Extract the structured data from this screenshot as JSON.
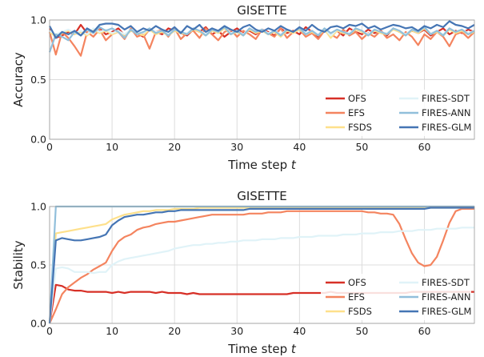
{
  "chart_data": [
    {
      "type": "line",
      "title": "GISETTE",
      "xlabel_main": "Time step ",
      "xlabel_var": "t",
      "ylabel": "Accuracy",
      "xlim": [
        0,
        68
      ],
      "ylim": [
        0,
        1
      ],
      "xticks": [
        "0",
        "10",
        "20",
        "30",
        "40",
        "50",
        "60"
      ],
      "xtick_values": [
        0,
        10,
        20,
        30,
        40,
        50,
        60
      ],
      "yticks": [
        "0.0",
        "0.5",
        "1.0"
      ],
      "ytick_values": [
        0,
        0.5,
        1.0
      ],
      "grid": true,
      "legend_position": "lower-right",
      "series": [
        {
          "name": "OFS",
          "color": "#d73027",
          "values": [
            0.93,
            0.85,
            0.87,
            0.9,
            0.88,
            0.96,
            0.89,
            0.91,
            0.93,
            0.88,
            0.9,
            0.93,
            0.87,
            0.91,
            0.89,
            0.86,
            0.92,
            0.9,
            0.88,
            0.93,
            0.91,
            0.89,
            0.87,
            0.92,
            0.9,
            0.94,
            0.88,
            0.91,
            0.86,
            0.9,
            0.93,
            0.89,
            0.91,
            0.88,
            0.92,
            0.9,
            0.87,
            0.93,
            0.89,
            0.91,
            0.88,
            0.94,
            0.9,
            0.86,
            0.92,
            0.89,
            0.91,
            0.87,
            0.93,
            0.9,
            0.88,
            0.92,
            0.89,
            0.91,
            0.87,
            0.93,
            0.9,
            0.88,
            0.91,
            0.89,
            0.92,
            0.87,
            0.9,
            0.93,
            0.88,
            0.91,
            0.89,
            0.92,
            0.9
          ]
        },
        {
          "name": "EFS",
          "color": "#f4845f",
          "values": [
            0.9,
            0.71,
            0.9,
            0.85,
            0.78,
            0.7,
            0.9,
            0.86,
            0.92,
            0.83,
            0.88,
            0.9,
            0.84,
            0.93,
            0.86,
            0.88,
            0.76,
            0.9,
            0.92,
            0.86,
            0.93,
            0.84,
            0.89,
            0.91,
            0.85,
            0.93,
            0.88,
            0.83,
            0.9,
            0.92,
            0.86,
            0.91,
            0.88,
            0.84,
            0.92,
            0.89,
            0.86,
            0.93,
            0.85,
            0.9,
            0.92,
            0.86,
            0.89,
            0.84,
            0.91,
            0.88,
            0.85,
            0.92,
            0.87,
            0.9,
            0.84,
            0.89,
            0.86,
            0.91,
            0.85,
            0.88,
            0.83,
            0.9,
            0.86,
            0.79,
            0.88,
            0.84,
            0.9,
            0.86,
            0.78,
            0.88,
            0.9,
            0.85,
            0.9
          ]
        },
        {
          "name": "FSDS",
          "color": "#fee08b",
          "values": [
            0.9,
            0.86,
            0.89,
            0.91,
            0.88,
            0.9,
            0.87,
            0.92,
            0.89,
            0.91,
            0.88,
            0.9,
            0.86,
            0.91,
            0.89,
            0.87,
            0.92,
            0.88,
            0.9,
            0.87,
            0.91,
            0.89,
            0.88,
            0.92,
            0.9,
            0.87,
            0.91,
            0.89,
            0.93,
            0.88,
            0.9,
            0.87,
            0.92,
            0.89,
            0.91,
            0.88,
            0.9,
            0.86,
            0.91,
            0.89,
            0.92,
            0.88,
            0.9,
            0.87,
            0.92,
            0.85,
            0.91,
            0.89,
            0.88,
            0.92,
            0.9,
            0.87,
            0.91,
            0.89,
            0.88,
            0.92,
            0.9,
            0.87,
            0.91,
            0.89,
            0.93,
            0.88,
            0.9,
            0.87,
            0.92,
            0.89,
            0.91,
            0.88,
            0.9
          ]
        },
        {
          "name": "FIRES-SDT",
          "color": "#e0f3f8",
          "values": [
            0.91,
            0.88,
            0.9,
            0.92,
            0.89,
            0.91,
            0.88,
            0.93,
            0.9,
            0.92,
            0.89,
            0.91,
            0.88,
            0.92,
            0.9,
            0.89,
            0.93,
            0.9,
            0.91,
            0.88,
            0.92,
            0.9,
            0.89,
            0.93,
            0.91,
            0.88,
            0.92,
            0.9,
            0.94,
            0.89,
            0.91,
            0.88,
            0.93,
            0.9,
            0.92,
            0.89,
            0.91,
            0.88,
            0.92,
            0.9,
            0.93,
            0.89,
            0.91,
            0.88,
            0.93,
            0.87,
            0.92,
            0.9,
            0.89,
            0.93,
            0.91,
            0.88,
            0.92,
            0.9,
            0.89,
            0.93,
            0.91,
            0.88,
            0.92,
            0.9,
            0.94,
            0.89,
            0.91,
            0.88,
            0.93,
            0.9,
            0.92,
            0.89,
            0.91
          ]
        },
        {
          "name": "FIRES-ANN",
          "color": "#91bfdb",
          "values": [
            0.73,
            0.88,
            0.86,
            0.83,
            0.9,
            0.87,
            0.92,
            0.89,
            0.94,
            0.91,
            0.93,
            0.9,
            0.85,
            0.92,
            0.88,
            0.9,
            0.93,
            0.89,
            0.91,
            0.87,
            0.92,
            0.9,
            0.88,
            0.93,
            0.91,
            0.87,
            0.92,
            0.9,
            0.94,
            0.88,
            0.91,
            0.87,
            0.93,
            0.9,
            0.92,
            0.88,
            0.91,
            0.87,
            0.92,
            0.9,
            0.93,
            0.88,
            0.91,
            0.87,
            0.93,
            0.89,
            0.92,
            0.9,
            0.88,
            0.93,
            0.91,
            0.87,
            0.92,
            0.9,
            0.88,
            0.93,
            0.91,
            0.87,
            0.92,
            0.9,
            0.94,
            0.88,
            0.91,
            0.87,
            0.93,
            0.9,
            0.92,
            0.88,
            0.91
          ]
        },
        {
          "name": "FIRES-GLM",
          "color": "#4575b4",
          "values": [
            0.95,
            0.85,
            0.9,
            0.88,
            0.91,
            0.87,
            0.93,
            0.9,
            0.96,
            0.97,
            0.97,
            0.96,
            0.92,
            0.95,
            0.9,
            0.93,
            0.91,
            0.95,
            0.92,
            0.9,
            0.94,
            0.89,
            0.95,
            0.92,
            0.96,
            0.9,
            0.93,
            0.91,
            0.95,
            0.92,
            0.9,
            0.94,
            0.96,
            0.92,
            0.9,
            0.93,
            0.91,
            0.95,
            0.92,
            0.9,
            0.94,
            0.91,
            0.96,
            0.92,
            0.9,
            0.94,
            0.95,
            0.93,
            0.96,
            0.95,
            0.97,
            0.93,
            0.95,
            0.92,
            0.94,
            0.96,
            0.95,
            0.93,
            0.94,
            0.91,
            0.95,
            0.93,
            0.96,
            0.94,
            0.99,
            0.96,
            0.95,
            0.93,
            0.96
          ]
        }
      ]
    },
    {
      "type": "line",
      "title": "GISETTE",
      "xlabel_main": "Time step ",
      "xlabel_var": "t",
      "ylabel": "Stability",
      "xlim": [
        0,
        68
      ],
      "ylim": [
        0,
        1
      ],
      "xticks": [
        "0",
        "10",
        "20",
        "30",
        "40",
        "50",
        "60"
      ],
      "xtick_values": [
        0,
        10,
        20,
        30,
        40,
        50,
        60
      ],
      "yticks": [
        "0.0",
        "0.5",
        "1.0"
      ],
      "ytick_values": [
        0,
        0.5,
        1.0
      ],
      "grid": true,
      "legend_position": "lower-right",
      "series": [
        {
          "name": "OFS",
          "color": "#d73027",
          "values": [
            0,
            0.33,
            0.32,
            0.29,
            0.28,
            0.28,
            0.27,
            0.27,
            0.27,
            0.27,
            0.26,
            0.27,
            0.26,
            0.27,
            0.27,
            0.27,
            0.27,
            0.26,
            0.27,
            0.26,
            0.26,
            0.26,
            0.25,
            0.26,
            0.25,
            0.25,
            0.25,
            0.25,
            0.25,
            0.25,
            0.25,
            0.25,
            0.25,
            0.25,
            0.25,
            0.25,
            0.25,
            0.25,
            0.25,
            0.26,
            0.26,
            0.26,
            0.26,
            0.26,
            0.26,
            0.27,
            0.26,
            0.26,
            0.26,
            0.26,
            0.26,
            0.26,
            0.26,
            0.26,
            0.26,
            0.26,
            0.26,
            0.26,
            0.27,
            0.27,
            0.27,
            0.27,
            0.27,
            0.27,
            0.27,
            0.27,
            0.27,
            0.27,
            0.27
          ]
        },
        {
          "name": "EFS",
          "color": "#f4845f",
          "values": [
            0,
            0.12,
            0.25,
            0.31,
            0.35,
            0.39,
            0.42,
            0.46,
            0.49,
            0.52,
            0.62,
            0.7,
            0.74,
            0.76,
            0.8,
            0.82,
            0.83,
            0.85,
            0.86,
            0.87,
            0.87,
            0.88,
            0.89,
            0.9,
            0.91,
            0.92,
            0.93,
            0.93,
            0.93,
            0.93,
            0.93,
            0.93,
            0.94,
            0.94,
            0.94,
            0.95,
            0.95,
            0.95,
            0.96,
            0.96,
            0.96,
            0.96,
            0.96,
            0.96,
            0.96,
            0.96,
            0.96,
            0.96,
            0.96,
            0.96,
            0.96,
            0.95,
            0.95,
            0.94,
            0.94,
            0.93,
            0.85,
            0.72,
            0.6,
            0.52,
            0.49,
            0.5,
            0.57,
            0.71,
            0.86,
            0.96,
            0.98,
            0.98,
            0.98
          ]
        },
        {
          "name": "FSDS",
          "color": "#fee08b",
          "values": [
            0,
            0.77,
            0.78,
            0.79,
            0.8,
            0.81,
            0.82,
            0.83,
            0.84,
            0.85,
            0.89,
            0.91,
            0.93,
            0.94,
            0.95,
            0.96,
            0.96,
            0.97,
            0.97,
            0.97,
            0.98,
            0.98,
            0.98,
            0.98,
            0.99,
            0.99,
            0.99,
            0.99,
            0.99,
            0.99,
            0.99,
            0.99,
            0.99,
            0.99,
            0.99,
            0.99,
            0.99,
            0.99,
            0.99,
            0.99,
            0.99,
            0.99,
            0.99,
            0.99,
            0.99,
            0.99,
            0.99,
            0.99,
            0.99,
            0.99,
            0.99,
            0.99,
            0.99,
            0.99,
            0.99,
            0.99,
            0.99,
            0.99,
            0.99,
            0.99,
            0.99,
            0.99,
            0.99,
            0.99,
            0.99,
            0.99,
            0.99,
            0.99,
            0.99
          ]
        },
        {
          "name": "FIRES-SDT",
          "color": "#e0f3f8",
          "values": [
            0,
            0.47,
            0.48,
            0.47,
            0.44,
            0.44,
            0.44,
            0.43,
            0.44,
            0.44,
            0.5,
            0.53,
            0.55,
            0.56,
            0.57,
            0.58,
            0.59,
            0.6,
            0.61,
            0.62,
            0.64,
            0.65,
            0.66,
            0.67,
            0.67,
            0.68,
            0.68,
            0.69,
            0.69,
            0.7,
            0.7,
            0.71,
            0.71,
            0.71,
            0.72,
            0.72,
            0.72,
            0.73,
            0.73,
            0.73,
            0.74,
            0.74,
            0.74,
            0.75,
            0.75,
            0.75,
            0.75,
            0.76,
            0.76,
            0.76,
            0.77,
            0.77,
            0.77,
            0.78,
            0.78,
            0.78,
            0.79,
            0.79,
            0.79,
            0.8,
            0.8,
            0.8,
            0.81,
            0.81,
            0.81,
            0.81,
            0.82,
            0.82,
            0.82
          ]
        },
        {
          "name": "FIRES-ANN",
          "color": "#91bfdb",
          "values": [
            0,
            1.0,
            1.0,
            1.0,
            1.0,
            1.0,
            1.0,
            1.0,
            1.0,
            1.0,
            1.0,
            1.0,
            1.0,
            1.0,
            1.0,
            1.0,
            1.0,
            1.0,
            1.0,
            1.0,
            1.0,
            1.0,
            1.0,
            1.0,
            1.0,
            1.0,
            1.0,
            1.0,
            1.0,
            1.0,
            1.0,
            1.0,
            1.0,
            1.0,
            1.0,
            1.0,
            1.0,
            1.0,
            1.0,
            1.0,
            1.0,
            1.0,
            1.0,
            1.0,
            1.0,
            1.0,
            1.0,
            1.0,
            1.0,
            1.0,
            1.0,
            1.0,
            1.0,
            1.0,
            1.0,
            1.0,
            1.0,
            1.0,
            1.0,
            1.0,
            1.0,
            1.0,
            1.0,
            1.0,
            1.0,
            1.0,
            1.0,
            1.0,
            1.0
          ]
        },
        {
          "name": "FIRES-GLM",
          "color": "#4575b4",
          "values": [
            0,
            0.71,
            0.73,
            0.72,
            0.71,
            0.71,
            0.72,
            0.73,
            0.74,
            0.76,
            0.84,
            0.88,
            0.91,
            0.92,
            0.93,
            0.93,
            0.94,
            0.95,
            0.95,
            0.96,
            0.96,
            0.97,
            0.97,
            0.97,
            0.97,
            0.97,
            0.97,
            0.97,
            0.97,
            0.97,
            0.97,
            0.97,
            0.98,
            0.98,
            0.98,
            0.98,
            0.98,
            0.98,
            0.98,
            0.98,
            0.98,
            0.98,
            0.98,
            0.98,
            0.98,
            0.98,
            0.98,
            0.98,
            0.98,
            0.98,
            0.98,
            0.98,
            0.98,
            0.98,
            0.98,
            0.98,
            0.98,
            0.98,
            0.98,
            0.98,
            0.98,
            0.99,
            0.99,
            0.99,
            0.99,
            0.99,
            0.99,
            0.99,
            0.99
          ]
        }
      ]
    }
  ]
}
